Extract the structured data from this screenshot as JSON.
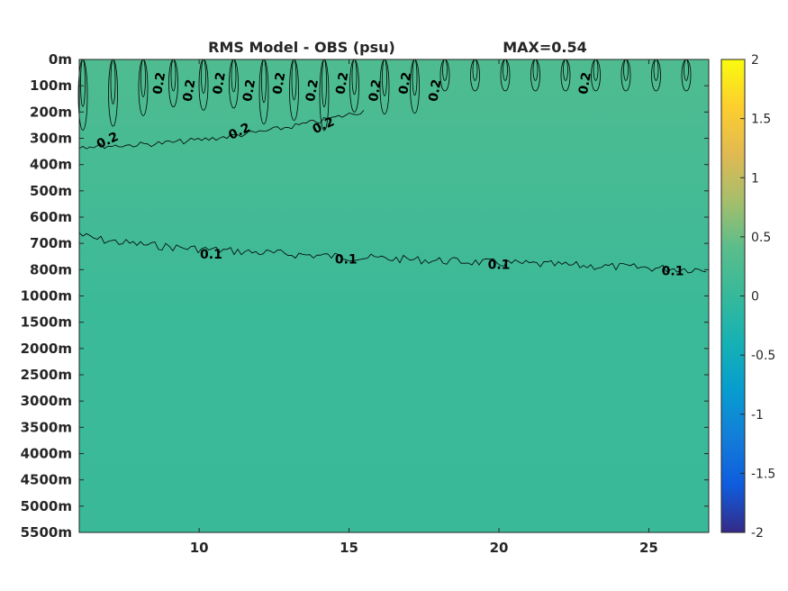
{
  "chart_data": {
    "type": "heatmap",
    "title": "RMS Model - OBS (psu)",
    "subtitle": "MAX=0.54",
    "xlabel": "",
    "ylabel": "",
    "xlim": [
      6.0,
      27.0
    ],
    "x_ticks": [
      10,
      15,
      20,
      25
    ],
    "x_tick_labels": [
      "10",
      "15",
      "20",
      "25"
    ],
    "y_levels": [
      "0m",
      "100m",
      "200m",
      "300m",
      "400m",
      "500m",
      "600m",
      "700m",
      "800m",
      "1000m",
      "1500m",
      "2000m",
      "2500m",
      "3000m",
      "3500m",
      "4000m",
      "4500m",
      "5000m",
      "5500m"
    ],
    "y_direction": "reversed",
    "colorbar": {
      "ticks": [
        2,
        1.5,
        1,
        0.5,
        0,
        -0.5,
        -1,
        -1.5,
        -2
      ],
      "tick_labels": [
        "2",
        "1.5",
        "1",
        "0.5",
        "0",
        "-0.5",
        "-1",
        "-1.5",
        "-2"
      ],
      "clim": [
        -2,
        2
      ],
      "colormap": "parula"
    },
    "field_profile": [
      {
        "depth": "0m",
        "value": 0.28
      },
      {
        "depth": "200m",
        "value": 0.24
      },
      {
        "depth": "300m",
        "value": 0.2
      },
      {
        "depth": "500m",
        "value": 0.17
      },
      {
        "depth": "700m",
        "value": 0.12
      },
      {
        "depth": "800m",
        "value": 0.1
      },
      {
        "depth": "1000m",
        "value": 0.07
      },
      {
        "depth": "1500m",
        "value": 0.05
      },
      {
        "depth": "5500m",
        "value": 0.04
      }
    ],
    "contours": [
      {
        "level": 0.2,
        "label": "0.2",
        "label_x": [
          8.8,
          9.8,
          10.8,
          11.8,
          12.8,
          13.9,
          14.9,
          16.0,
          17.0,
          18.0,
          23.0
        ]
      },
      {
        "level": 0.2,
        "label": "0.2",
        "label_x": [
          7.0,
          11.4,
          14.2
        ]
      },
      {
        "level": 0.1,
        "label": "0.1",
        "label_x": [
          10.4,
          14.9,
          20.0,
          25.8
        ]
      }
    ]
  }
}
